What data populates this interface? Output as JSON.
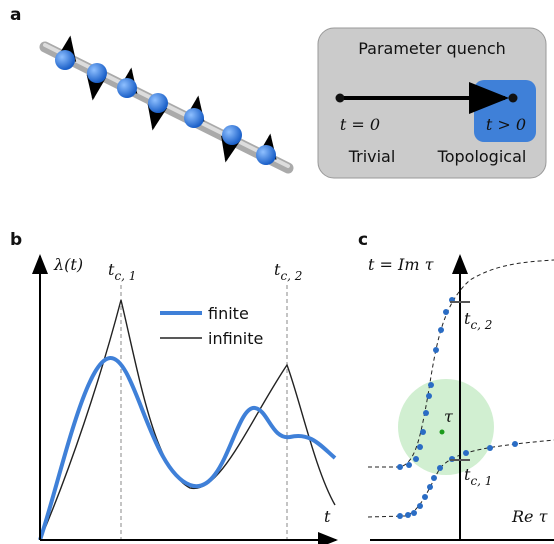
{
  "panel_a": {
    "label": "a",
    "box_title": "Parameter quench",
    "left_time": "t = 0",
    "right_time": "t > 0",
    "left_phase": "Trivial",
    "right_phase": "Topological"
  },
  "panel_b": {
    "label": "b",
    "y_axis": {
      "main": "λ(t)"
    },
    "crit_1": {
      "main": "t",
      "sub": "c, 1"
    },
    "crit_2": {
      "main": "t",
      "sub": "c, 2"
    },
    "legend": [
      "finite",
      "infinite"
    ],
    "x_axis": "t"
  },
  "panel_c": {
    "label": "c",
    "y_axis": "t = Im τ",
    "crit_2": {
      "main": "t",
      "sub": "c, 2"
    },
    "crit_1": {
      "main": "t",
      "sub": "c, 1"
    },
    "point": "τ",
    "x_axis": "Re τ"
  }
}
